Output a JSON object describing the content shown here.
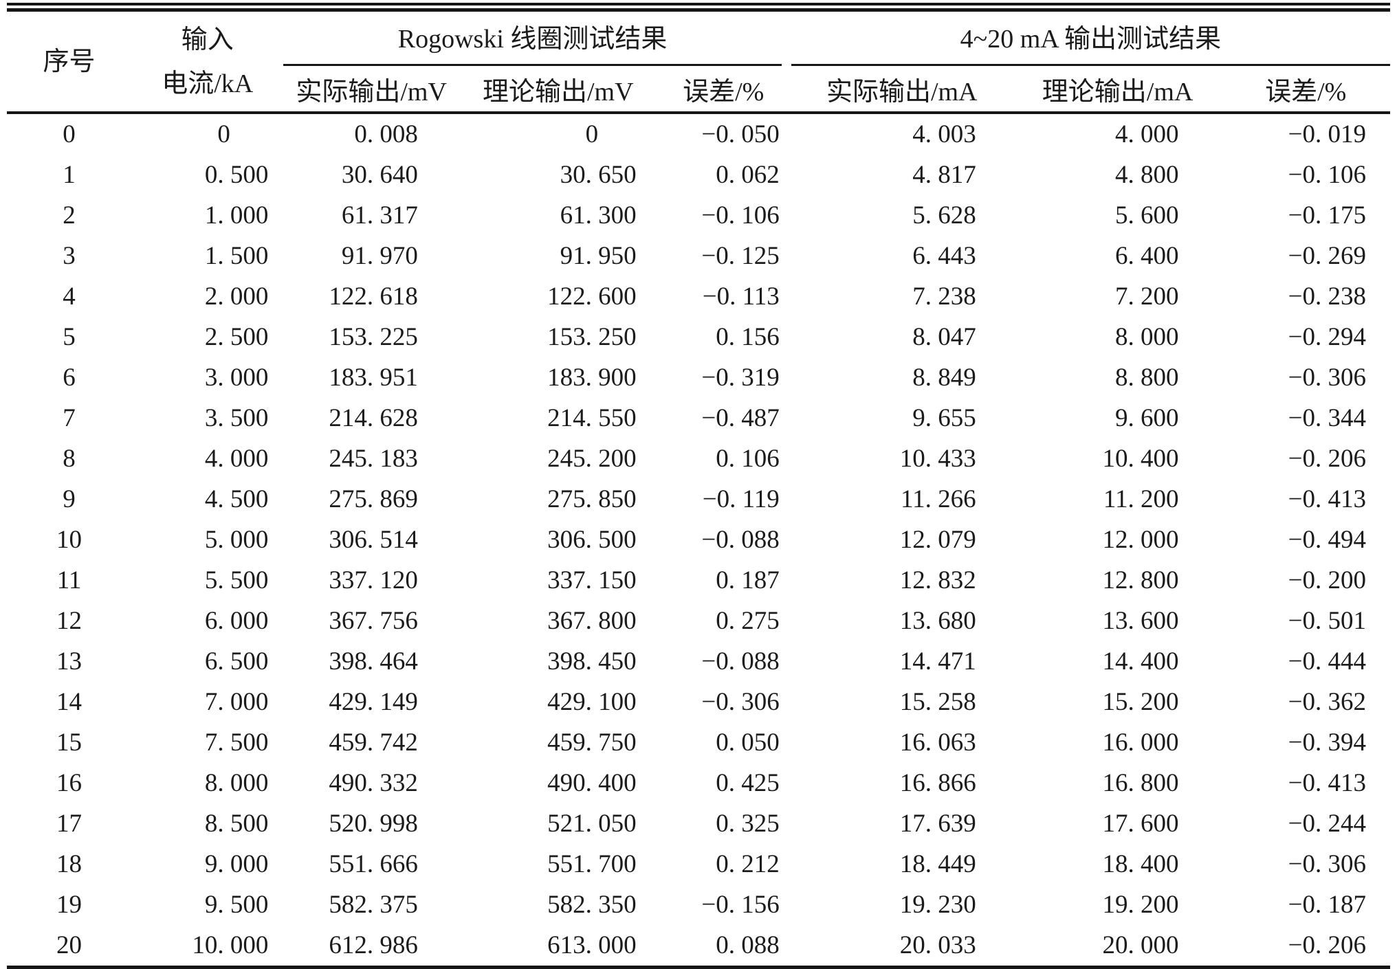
{
  "table": {
    "headers": {
      "seq": "序号",
      "input_line1": "输入",
      "input_line2": "电流/kA",
      "group1": "Rogowski 线圈测试结果",
      "group2": "4~20 mA 输出测试结果",
      "g1_actual": "实际输出/mV",
      "g1_theory": "理论输出/mV",
      "g1_error": "误差/%",
      "g2_actual": "实际输出/mA",
      "g2_theory": "理论输出/mA",
      "g2_error": "误差/%"
    },
    "rows": [
      [
        "0",
        "0      ",
        "0. 008",
        "0      ",
        "−0. 050",
        "4. 003",
        "4. 000",
        "−0. 019"
      ],
      [
        "1",
        "0. 500",
        "30. 640",
        "30. 650",
        "0. 062",
        "4. 817",
        "4. 800",
        "−0. 106"
      ],
      [
        "2",
        "1. 000",
        "61. 317",
        "61. 300",
        "−0. 106",
        "5. 628",
        "5. 600",
        "−0. 175"
      ],
      [
        "3",
        "1. 500",
        "91. 970",
        "91. 950",
        "−0. 125",
        "6. 443",
        "6. 400",
        "−0. 269"
      ],
      [
        "4",
        "2. 000",
        "122. 618",
        "122. 600",
        "−0. 113",
        "7. 238",
        "7. 200",
        "−0. 238"
      ],
      [
        "5",
        "2. 500",
        "153. 225",
        "153. 250",
        "0. 156",
        "8. 047",
        "8. 000",
        "−0. 294"
      ],
      [
        "6",
        "3. 000",
        "183. 951",
        "183. 900",
        "−0. 319",
        "8. 849",
        "8. 800",
        "−0. 306"
      ],
      [
        "7",
        "3. 500",
        "214. 628",
        "214. 550",
        "−0. 487",
        "9. 655",
        "9. 600",
        "−0. 344"
      ],
      [
        "8",
        "4. 000",
        "245. 183",
        "245. 200",
        "0. 106",
        "10. 433",
        "10. 400",
        "−0. 206"
      ],
      [
        "9",
        "4. 500",
        "275. 869",
        "275. 850",
        "−0. 119",
        "11. 266",
        "11. 200",
        "−0. 413"
      ],
      [
        "10",
        "5. 000",
        "306. 514",
        "306. 500",
        "−0. 088",
        "12. 079",
        "12. 000",
        "−0. 494"
      ],
      [
        "11",
        "5. 500",
        "337. 120",
        "337. 150",
        "0. 187",
        "12. 832",
        "12. 800",
        "−0. 200"
      ],
      [
        "12",
        "6. 000",
        "367. 756",
        "367. 800",
        "0. 275",
        "13. 680",
        "13. 600",
        "−0. 501"
      ],
      [
        "13",
        "6. 500",
        "398. 464",
        "398. 450",
        "−0. 088",
        "14. 471",
        "14. 400",
        "−0. 444"
      ],
      [
        "14",
        "7. 000",
        "429. 149",
        "429. 100",
        "−0. 306",
        "15. 258",
        "15. 200",
        "−0. 362"
      ],
      [
        "15",
        "7. 500",
        "459. 742",
        "459. 750",
        "0. 050",
        "16. 063",
        "16. 000",
        "−0. 394"
      ],
      [
        "16",
        "8. 000",
        "490. 332",
        "490. 400",
        "0. 425",
        "16. 866",
        "16. 800",
        "−0. 413"
      ],
      [
        "17",
        "8. 500",
        "520. 998",
        "521. 050",
        "0. 325",
        "17. 639",
        "17. 600",
        "−0. 244"
      ],
      [
        "18",
        "9. 000",
        "551. 666",
        "551. 700",
        "0. 212",
        "18. 449",
        "18. 400",
        "−0. 306"
      ],
      [
        "19",
        "9. 500",
        "582. 375",
        "582. 350",
        "−0. 156",
        "19. 230",
        "19. 200",
        "−0. 187"
      ],
      [
        "20",
        "10. 000",
        "612. 986",
        "613. 000",
        "0. 088",
        "20. 033",
        "20. 000",
        "−0. 206"
      ]
    ]
  }
}
